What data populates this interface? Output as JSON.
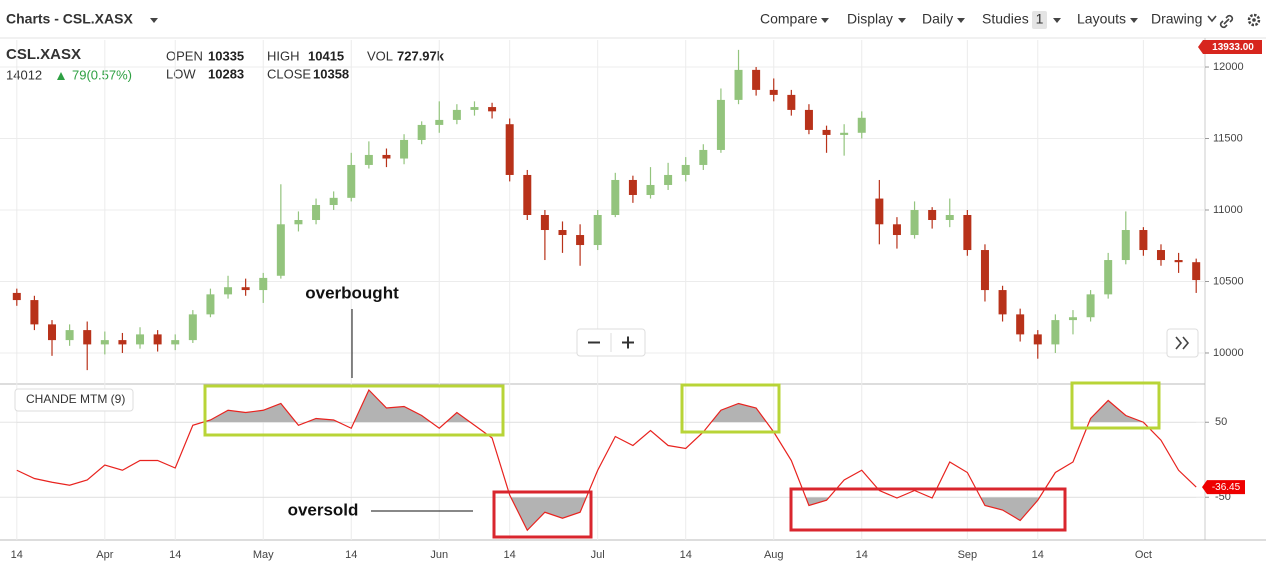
{
  "toolbar": {
    "title": "Charts - CSL.XASX",
    "compare": "Compare",
    "display": "Display",
    "interval": "Daily",
    "studies": "Studies",
    "studies_count": 1,
    "layouts": "Layouts",
    "drawing": "Drawing"
  },
  "header": {
    "symbol": "CSL.XASX",
    "price": 14012,
    "change": "79(0.57%)",
    "open_label": "OPEN",
    "open": 10335,
    "high_label": "HIGH",
    "high": 10415,
    "vol_label": "VOL",
    "vol": "727.97k",
    "low_label": "LOW",
    "low": 10283,
    "close_label": "CLOSE",
    "close": 10358,
    "price_tag": "13933.00"
  },
  "chart_data": [
    {
      "type": "candlestick",
      "categories": [
        "14",
        null,
        null,
        null,
        null,
        "Apr",
        null,
        null,
        null,
        "14",
        null,
        null,
        null,
        null,
        "May",
        null,
        null,
        null,
        null,
        "14",
        null,
        null,
        null,
        null,
        "Jun",
        null,
        null,
        null,
        "14",
        null,
        null,
        null,
        null,
        "Jul",
        null,
        null,
        null,
        null,
        "14",
        null,
        null,
        null,
        null,
        "Aug",
        null,
        null,
        null,
        null,
        "14",
        null,
        null,
        null,
        null,
        null,
        "Sep",
        null,
        null,
        null,
        "14",
        null,
        null,
        null,
        null,
        null,
        "Oct",
        null,
        null,
        null
      ],
      "open": [
        10420,
        10370,
        10200,
        10090,
        10160,
        10060,
        10090,
        10060,
        10130,
        10060,
        10090,
        10270,
        10410,
        10460,
        10440,
        10540,
        10900,
        10930,
        11035,
        11085,
        11315,
        11385,
        11360,
        11490,
        11595,
        11630,
        11700,
        11720,
        11600,
        11245,
        10965,
        10860,
        10825,
        10755,
        10965,
        11210,
        11105,
        11175,
        11245,
        11315,
        11420,
        11770,
        11980,
        11840,
        11805,
        11700,
        11560,
        11525,
        11540,
        11080,
        10900,
        10825,
        11000,
        10930,
        10965,
        10720,
        10440,
        10270,
        10130,
        10060,
        10230,
        10250,
        10410,
        10650,
        10860,
        10720,
        10650,
        10635
      ],
      "high": [
        10450,
        10400,
        10230,
        10200,
        10220,
        10150,
        10140,
        10180,
        10160,
        10130,
        10300,
        10450,
        10540,
        10520,
        10560,
        11180,
        10990,
        11080,
        11130,
        11400,
        11480,
        11430,
        11530,
        11620,
        11760,
        11740,
        11760,
        11750,
        11640,
        11280,
        11000,
        10920,
        10900,
        11000,
        11260,
        11240,
        11300,
        11330,
        11370,
        11460,
        11850,
        12120,
        12000,
        11920,
        11840,
        11740,
        11590,
        11600,
        11690,
        11210,
        10950,
        11060,
        11020,
        11080,
        11000,
        10760,
        10470,
        10310,
        10160,
        10270,
        10300,
        10440,
        10700,
        10990,
        10880,
        10760,
        10700,
        10660
      ],
      "low": [
        10330,
        10160,
        9980,
        10050,
        9880,
        9990,
        10000,
        10030,
        10010,
        10020,
        10070,
        10250,
        10380,
        10400,
        10350,
        10520,
        10850,
        10900,
        11000,
        11060,
        11290,
        11300,
        11320,
        11460,
        11540,
        11600,
        11660,
        11640,
        11200,
        10930,
        10650,
        10700,
        10610,
        10720,
        10950,
        11050,
        11080,
        11140,
        11200,
        11280,
        11400,
        11740,
        11800,
        11760,
        11660,
        11530,
        11400,
        11380,
        11500,
        10760,
        10730,
        10800,
        10870,
        10880,
        10680,
        10360,
        10220,
        10080,
        9960,
        10000,
        10130,
        10220,
        10380,
        10620,
        10680,
        10610,
        10560,
        10420
      ],
      "close": [
        10370,
        10200,
        10090,
        10160,
        10060,
        10090,
        10060,
        10130,
        10060,
        10090,
        10270,
        10410,
        10460,
        10440,
        10525,
        10900,
        10930,
        11035,
        11085,
        11315,
        11385,
        11360,
        11490,
        11595,
        11630,
        11700,
        11720,
        11690,
        11245,
        10965,
        10860,
        10825,
        10755,
        10965,
        11210,
        11105,
        11175,
        11245,
        11315,
        11420,
        11770,
        11980,
        11840,
        11805,
        11700,
        11560,
        11525,
        11540,
        11645,
        10900,
        10825,
        11000,
        10930,
        10965,
        10720,
        10440,
        10270,
        10130,
        10060,
        10230,
        10250,
        10410,
        10650,
        10860,
        10720,
        10650,
        10635,
        10510
      ],
      "up_color": "#93c47d",
      "down_color": "#b8321a",
      "ylim": [
        9783,
        12189
      ],
      "yticks": [
        10000,
        10500,
        11000,
        11500,
        12000
      ],
      "grid": true
    },
    {
      "type": "line",
      "label": "CHANDE MTM (9)",
      "color": "#e8231f",
      "fill_color": "#b3b3b3",
      "values": [
        -14,
        -25,
        -30,
        -34,
        -27,
        -7,
        -14,
        -1,
        -1,
        -11,
        46,
        53,
        66,
        63,
        66,
        75,
        46,
        55,
        53,
        42,
        93,
        69,
        71,
        59,
        42,
        63,
        46,
        29,
        -47,
        -94,
        -70,
        -78,
        -70,
        -14,
        31,
        19,
        39,
        19,
        15,
        37,
        66,
        75,
        69,
        37,
        -1,
        -61,
        -54,
        -27,
        -14,
        -41,
        -51,
        -41,
        -51,
        -3,
        -17,
        -61,
        -67,
        -81,
        -54,
        -17,
        -3,
        55,
        79,
        59,
        50,
        26,
        -14,
        -36.45
      ],
      "ylim": [
        -107,
        101
      ],
      "yticks": [
        50,
        -50
      ],
      "annotations": [
        "overbought",
        "oversold"
      ]
    }
  ]
}
